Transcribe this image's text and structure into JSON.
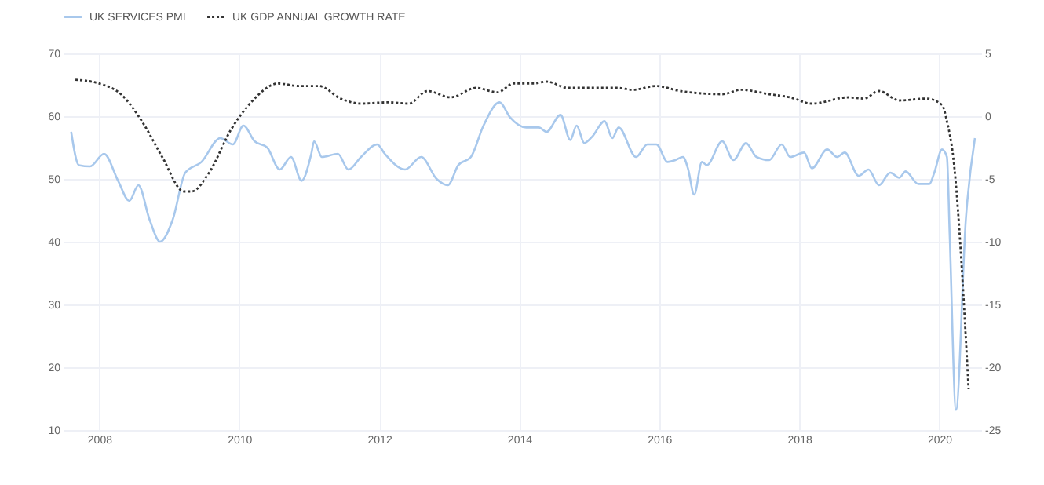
{
  "chart_data": {
    "type": "line",
    "xlim": [
      2007.48,
      2020.6
    ],
    "xticks": [
      2008,
      2010,
      2012,
      2014,
      2016,
      2018,
      2020
    ],
    "ylim": [
      10,
      70
    ],
    "yticks": [
      10,
      20,
      30,
      40,
      50,
      60,
      70
    ],
    "y2lim": [
      -25,
      5
    ],
    "y2ticks": [
      -25,
      -20,
      -15,
      -10,
      -5,
      0,
      5
    ],
    "grid": true,
    "legend": "top left",
    "marker": "none",
    "series": [
      {
        "name": "UK SERVICES PMI",
        "color": "#a8c8ec",
        "line_style": "solid",
        "x": [
          2007.6,
          2007.71,
          2007.87,
          2008.07,
          2008.27,
          2008.43,
          2008.56,
          2008.72,
          2008.87,
          2009.05,
          2009.23,
          2009.46,
          2009.73,
          2009.91,
          2010.06,
          2010.22,
          2010.4,
          2010.58,
          2010.74,
          2010.89,
          2011.03,
          2011.07,
          2011.18,
          2011.41,
          2011.56,
          2011.74,
          2011.97,
          2012.08,
          2012.37,
          2012.6,
          2012.82,
          2012.98,
          2013.13,
          2013.31,
          2013.49,
          2013.72,
          2013.87,
          2014.1,
          2014.28,
          2014.39,
          2014.59,
          2014.73,
          2014.82,
          2014.93,
          2015.04,
          2015.22,
          2015.33,
          2015.42,
          2015.67,
          2015.83,
          2015.96,
          2016.12,
          2016.23,
          2016.34,
          2016.41,
          2016.5,
          2016.61,
          2016.68,
          2016.9,
          2017.06,
          2017.24,
          2017.39,
          2017.57,
          2017.75,
          2017.87,
          2018.07,
          2018.18,
          2018.4,
          2018.54,
          2018.65,
          2018.85,
          2018.99,
          2019.14,
          2019.3,
          2019.43,
          2019.52,
          2019.7,
          2019.86,
          2019.93,
          2020.04,
          2020.11,
          2020.15,
          2020.24,
          2020.38,
          2020.51
        ],
        "values": [
          57.5,
          52.2,
          52,
          54,
          49.7,
          46.5,
          49,
          43.5,
          40,
          43.5,
          51,
          52.7,
          56.5,
          55.5,
          58.5,
          56,
          55,
          51.5,
          53.5,
          49.7,
          54,
          56,
          53.5,
          54,
          51.5,
          53.5,
          55.5,
          54,
          51.5,
          53.5,
          50,
          49,
          52.2,
          53.5,
          58.5,
          62.2,
          59.8,
          58.2,
          58.2,
          57.5,
          60.2,
          56.2,
          58.5,
          55.7,
          56.7,
          59.2,
          56.5,
          58.2,
          53.5,
          55.5,
          55.5,
          52.7,
          53,
          53.5,
          51.7,
          47.5,
          52.7,
          52.2,
          56,
          53,
          55.7,
          53.5,
          53,
          55.5,
          53.5,
          54.2,
          51.7,
          54.7,
          53.5,
          54.2,
          50.5,
          51.5,
          49,
          51,
          50.2,
          51.2,
          49.2,
          49.2,
          51,
          54.7,
          53.5,
          41,
          13.2,
          43.5,
          56.5
        ]
      },
      {
        "name": "UK GDP ANNUAL GROWTH RATE",
        "color": "#333333",
        "line_style": "dotted",
        "axis": "y2",
        "x": [
          2007.66,
          2008,
          2008.31,
          2008.61,
          2008.9,
          2009.21,
          2009.32,
          2009.57,
          2009.88,
          2010.17,
          2010.56,
          2010.85,
          2011.14,
          2011.45,
          2011.74,
          2012.13,
          2012.42,
          2012.69,
          2013.02,
          2013.38,
          2013.69,
          2013.92,
          2014.21,
          2014.39,
          2014.7,
          2015.11,
          2015.4,
          2015.62,
          2015.96,
          2016.3,
          2016.9,
          2017.17,
          2017.57,
          2017.87,
          2018.18,
          2018.7,
          2018.92,
          2019.14,
          2019.43,
          2019.82,
          2020.04,
          2020.11,
          2020.2,
          2020.42
        ],
        "values": [
          2.9,
          2.6,
          1.75,
          -0.4,
          -3.25,
          -6,
          -6,
          -4.5,
          -1.1,
          1.1,
          2.6,
          2.4,
          2.4,
          1.4,
          1,
          1.1,
          1,
          2,
          1.5,
          2.25,
          1.9,
          2.6,
          2.6,
          2.75,
          2.25,
          2.25,
          2.25,
          2.1,
          2.4,
          2,
          1.75,
          2.1,
          1.75,
          1.5,
          1,
          1.5,
          1.4,
          2,
          1.25,
          1.4,
          0.9,
          -0.4,
          -3.25,
          -21.75
        ]
      }
    ]
  }
}
